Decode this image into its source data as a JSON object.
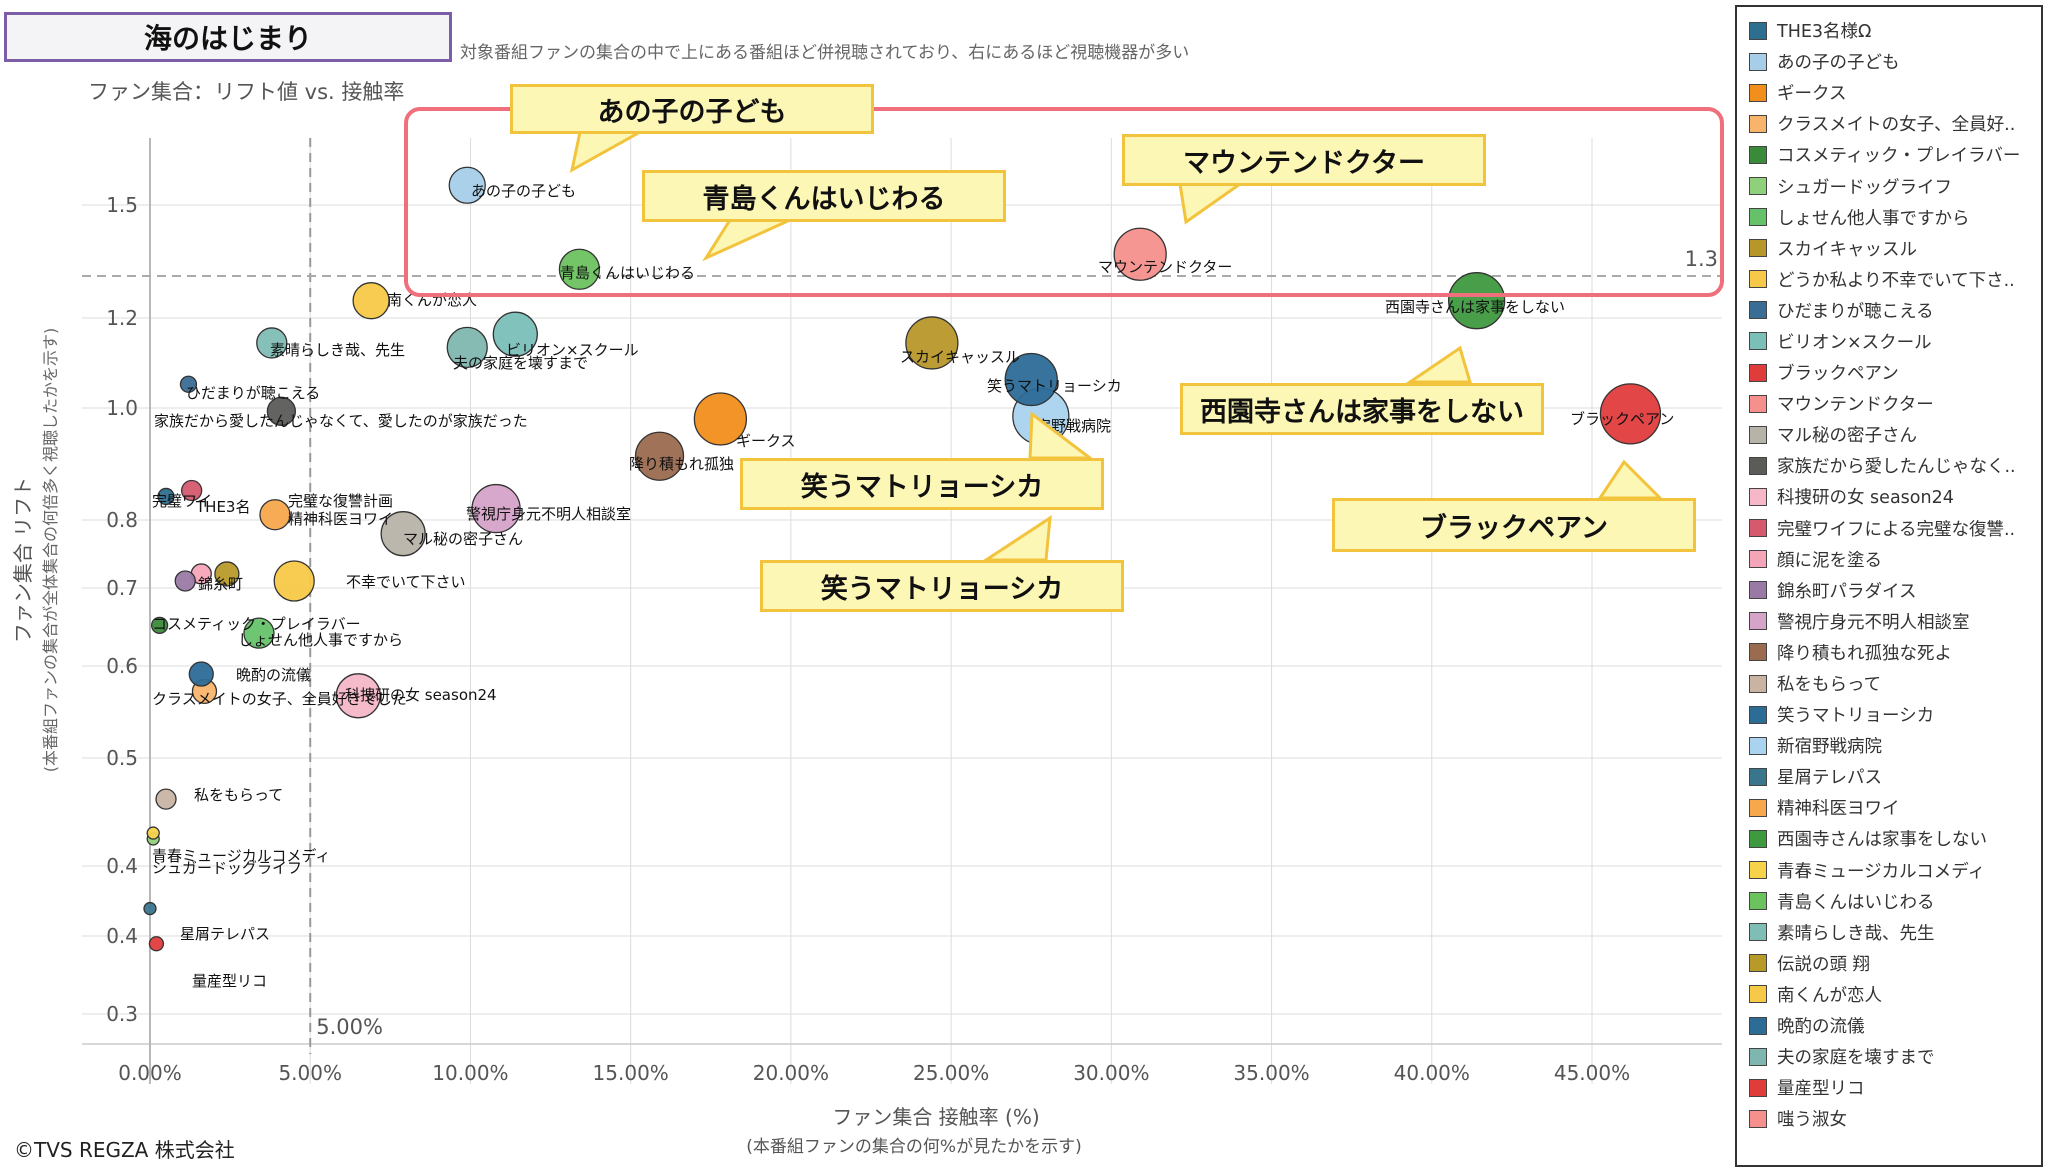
{
  "header": {
    "title": "海のはじまり",
    "description": "対象番組ファンの集合の中で上にある番組ほど併視聴されており、右にあるほど視聴機器が多い",
    "subtitle": "ファン集合：リフト値 vs. 接触率"
  },
  "footer": {
    "copyright": "©TVS REGZA 株式会社"
  },
  "callouts": {
    "anoko": "あの子の子ども",
    "aoshima": "青島くんはいじわる",
    "mountain": "マウンテンドクター",
    "saionji": "西園寺さんは家事をしない",
    "black": "ブラックペアン",
    "warau1": "笑うマトリョーシカ",
    "warau2": "笑うマトリョーシカ"
  },
  "chart_data": {
    "type": "scatter",
    "title": "ファン集合：リフト値 vs. 接触率",
    "xlabel": "ファン集合 接触率 (%)",
    "xlabel_sub": "(本番組ファンの集合の何%が見たかを示す)",
    "ylabel": "ファン集合 リフト",
    "ylabel_sub": "(本番組ファンの集合が全体集合の何倍多く視聴したかを示す)",
    "x_ticks": [
      "0.00%",
      "5.00%",
      "10.00%",
      "15.00%",
      "20.00%",
      "25.00%",
      "30.00%",
      "35.00%",
      "40.00%",
      "45.00%"
    ],
    "y_ticks": [
      "0.3",
      "0.4",
      "0.4",
      "0.5",
      "0.6",
      "0.7",
      "0.8",
      "1.0",
      "1.2",
      "1.5"
    ],
    "y_scale": "log",
    "xlim": [
      -2.5,
      50
    ],
    "ylim": [
      0.285,
      1.85
    ],
    "ref_line_x": {
      "value": 5.0,
      "label": "5.00%"
    },
    "ref_line_y": {
      "value": 1.3,
      "label": "1.3"
    },
    "points": [
      {
        "name": "THE3名様Ω",
        "x": 0.5,
        "y": 0.84,
        "size": 8,
        "color": "#2e6e8e"
      },
      {
        "name": "あの子の子ども",
        "x": 9.9,
        "y": 1.56,
        "size": 18,
        "color": "#a6cee8"
      },
      {
        "name": "ギークス",
        "x": 17.8,
        "y": 0.98,
        "size": 26,
        "color": "#f28e1c"
      },
      {
        "name": "クラスメイトの女子、全員好きでした",
        "x": 1.7,
        "y": 0.57,
        "size": 12,
        "color": "#f9b46b"
      },
      {
        "name": "コスメティック・プレイラバー",
        "x": 0.3,
        "y": 0.65,
        "size": 8,
        "color": "#3a8a3a"
      },
      {
        "name": "シュガードッグライフ",
        "x": 0.1,
        "y": 0.425,
        "size": 6,
        "color": "#8fd17a"
      },
      {
        "name": "しょせん他人事ですから",
        "x": 3.4,
        "y": 0.64,
        "size": 15,
        "color": "#66c26a"
      },
      {
        "name": "スカイキャッスル",
        "x": 24.4,
        "y": 1.14,
        "size": 26,
        "color": "#b8972a"
      },
      {
        "name": "どうか私より不幸でいて下さい",
        "x": 4.5,
        "y": 0.71,
        "size": 20,
        "color": "#f7c948"
      },
      {
        "name": "ひだまりが聴こえる",
        "x": 1.2,
        "y": 1.05,
        "size": 8,
        "color": "#3a6d93"
      },
      {
        "name": "ビリオン×スクール",
        "x": 11.4,
        "y": 1.16,
        "size": 22,
        "color": "#7bbfb8"
      },
      {
        "name": "ブラックペアン",
        "x": 46.2,
        "y": 0.99,
        "size": 30,
        "color": "#e03c3c"
      },
      {
        "name": "マウンテンドクター",
        "x": 30.9,
        "y": 1.36,
        "size": 26,
        "color": "#f5908c"
      },
      {
        "name": "マル秘の密子さん",
        "x": 7.9,
        "y": 0.78,
        "size": 22,
        "color": "#b8b3a8"
      },
      {
        "name": "家族だから愛したんじゃなくて、愛したのが家族だった",
        "x": 4.1,
        "y": 0.995,
        "size": 14,
        "color": "#5b5b58"
      },
      {
        "name": "科捜研の女 season24",
        "x": 6.5,
        "y": 0.565,
        "size": 22,
        "color": "#f6b7c8"
      },
      {
        "name": "完璧ワイフによる完璧な復讐計画",
        "x": 1.3,
        "y": 0.85,
        "size": 10,
        "color": "#d65a6e"
      },
      {
        "name": "顔に泥を塗る",
        "x": 1.6,
        "y": 0.72,
        "size": 10,
        "color": "#f5a5b8"
      },
      {
        "name": "錦糸町パラダイス",
        "x": 1.1,
        "y": 0.71,
        "size": 10,
        "color": "#9a7aa5"
      },
      {
        "name": "警視庁身元不明人相談室",
        "x": 10.8,
        "y": 0.82,
        "size": 24,
        "color": "#d6a3c9"
      },
      {
        "name": "降り積もれ孤独な死よ",
        "x": 15.9,
        "y": 0.91,
        "size": 24,
        "color": "#9b6b50"
      },
      {
        "name": "私をもらって",
        "x": 0.5,
        "y": 0.46,
        "size": 10,
        "color": "#c9b4a3"
      },
      {
        "name": "笑うマトリョーシカ",
        "x": 27.5,
        "y": 1.06,
        "size": 26,
        "color": "#2c6c97"
      },
      {
        "name": "新宿野戦病院",
        "x": 27.8,
        "y": 0.985,
        "size": 28,
        "color": "#a9d3ef"
      },
      {
        "name": "星屑テレパス",
        "x": 0.0,
        "y": 0.37,
        "size": 6,
        "color": "#3a758e"
      },
      {
        "name": "精神科医ヨワイ",
        "x": 3.9,
        "y": 0.81,
        "size": 15,
        "color": "#f7a74c"
      },
      {
        "name": "西園寺さんは家事をしない",
        "x": 41.4,
        "y": 1.24,
        "size": 28,
        "color": "#3f9a3f"
      },
      {
        "name": "青春ミュージカルコメディ",
        "x": 0.1,
        "y": 0.43,
        "size": 6,
        "color": "#f7d24b"
      },
      {
        "name": "青島くんはいじわる",
        "x": 13.4,
        "y": 1.32,
        "size": 20,
        "color": "#6cc25f"
      },
      {
        "name": "素晴らしき哉、先生",
        "x": 3.8,
        "y": 1.14,
        "size": 15,
        "color": "#7fbdb5"
      },
      {
        "name": "伝説の頭 翔",
        "x": 2.4,
        "y": 0.72,
        "size": 12,
        "color": "#b89a2a"
      },
      {
        "name": "南くんが恋人",
        "x": 6.9,
        "y": 1.24,
        "size": 18,
        "color": "#f7c948"
      },
      {
        "name": "晩酌の流儀",
        "x": 1.6,
        "y": 0.59,
        "size": 12,
        "color": "#2c6c97"
      },
      {
        "name": "夫の家庭を壊すまで",
        "x": 9.9,
        "y": 1.13,
        "size": 20,
        "color": "#7fb7b0"
      },
      {
        "name": "量産型リコ",
        "x": 0.2,
        "y": 0.345,
        "size": 7,
        "color": "#e03c3c"
      },
      {
        "name": "嗤う淑女",
        "x": 0.0,
        "y": 0.0,
        "size": 0,
        "color": "#f5908c"
      }
    ]
  },
  "point_labels": [
    {
      "text": "あの子の子ども"
    },
    {
      "text": "青島くんはいじわる"
    },
    {
      "text": "マウンテンドクター"
    },
    {
      "text": "西園寺さんは家事をしない"
    },
    {
      "text": "南くんが恋人"
    },
    {
      "text": "素晴らしき哉、先生"
    },
    {
      "text": "ビリオン×スクール"
    },
    {
      "text": "夫の家庭を壊すまで"
    },
    {
      "text": "スカイキャッスル"
    },
    {
      "text": "笑うマトリョーシカ"
    },
    {
      "text": "宿野戦病院"
    },
    {
      "text": "ブラックペアン"
    },
    {
      "text": "ひだまりが聴こえる"
    },
    {
      "text": "家族だから愛したんじゃなくて、愛したのが家族だった"
    },
    {
      "text": "ギークス"
    },
    {
      "text": "降り積もれ孤独"
    },
    {
      "text": "完璧ワイ"
    },
    {
      "text": "THE3名"
    },
    {
      "text": "完璧な復讐計画"
    },
    {
      "text": "精神科医ヨワイ"
    },
    {
      "text": "警視庁身元不明人相談室"
    },
    {
      "text": "マル秘の密子さん"
    },
    {
      "text": "錦糸町"
    },
    {
      "text": "不幸でいて下さい"
    },
    {
      "text": "コスメティック・プレイラバー"
    },
    {
      "text": "しょせん他人事ですから"
    },
    {
      "text": "晩酌の流儀"
    },
    {
      "text": "クラスメイトの女子、全員好きでした"
    },
    {
      "text": "科捜研の女 season24"
    },
    {
      "text": "私をもらって"
    },
    {
      "text": "青春ミュージカルコメディ"
    },
    {
      "text": "シュガードッグライフ"
    },
    {
      "text": "星屑テレパス"
    },
    {
      "text": "量産型リコ"
    }
  ],
  "legend": [
    {
      "label": "THE3名様Ω",
      "color": "#2e6e8e"
    },
    {
      "label": "あの子の子ども",
      "color": "#a6cee8"
    },
    {
      "label": "ギークス",
      "color": "#f28e1c"
    },
    {
      "label": "クラスメイトの女子、全員好..",
      "color": "#f9b46b"
    },
    {
      "label": "コスメティック・プレイラバー",
      "color": "#3a8a3a"
    },
    {
      "label": "シュガードッグライフ",
      "color": "#8fd17a"
    },
    {
      "label": "しょせん他人事ですから",
      "color": "#66c26a"
    },
    {
      "label": "スカイキャッスル",
      "color": "#b8972a"
    },
    {
      "label": "どうか私より不幸でいて下さ..",
      "color": "#f7c948"
    },
    {
      "label": "ひだまりが聴こえる",
      "color": "#3a6d93"
    },
    {
      "label": "ビリオン×スクール",
      "color": "#7bbfb8"
    },
    {
      "label": "ブラックペアン",
      "color": "#e03c3c"
    },
    {
      "label": "マウンテンドクター",
      "color": "#f5908c"
    },
    {
      "label": "マル秘の密子さん",
      "color": "#b8b3a8"
    },
    {
      "label": "家族だから愛したんじゃなく..",
      "color": "#5b5b58"
    },
    {
      "label": "科捜研の女 season24",
      "color": "#f6b7c8"
    },
    {
      "label": "完璧ワイフによる完璧な復讐..",
      "color": "#d65a6e"
    },
    {
      "label": "顔に泥を塗る",
      "color": "#f5a5b8"
    },
    {
      "label": "錦糸町パラダイス",
      "color": "#9a7aa5"
    },
    {
      "label": "警視庁身元不明人相談室",
      "color": "#d6a3c9"
    },
    {
      "label": "降り積もれ孤独な死よ",
      "color": "#9b6b50"
    },
    {
      "label": "私をもらって",
      "color": "#c9b4a3"
    },
    {
      "label": "笑うマトリョーシカ",
      "color": "#2c6c97"
    },
    {
      "label": "新宿野戦病院",
      "color": "#a9d3ef"
    },
    {
      "label": "星屑テレパス",
      "color": "#3a758e"
    },
    {
      "label": "精神科医ヨワイ",
      "color": "#f7a74c"
    },
    {
      "label": "西園寺さんは家事をしない",
      "color": "#3f9a3f"
    },
    {
      "label": "青春ミュージカルコメディ",
      "color": "#f7d24b"
    },
    {
      "label": "青島くんはいじわる",
      "color": "#6cc25f"
    },
    {
      "label": "素晴らしき哉、先生",
      "color": "#7fbdb5"
    },
    {
      "label": "伝説の頭 翔",
      "color": "#b89a2a"
    },
    {
      "label": "南くんが恋人",
      "color": "#f7c948"
    },
    {
      "label": "晩酌の流儀",
      "color": "#2c6c97"
    },
    {
      "label": "夫の家庭を壊すまで",
      "color": "#7fb7b0"
    },
    {
      "label": "量産型リコ",
      "color": "#e03c3c"
    },
    {
      "label": "嗤う淑女",
      "color": "#f5908c"
    }
  ]
}
